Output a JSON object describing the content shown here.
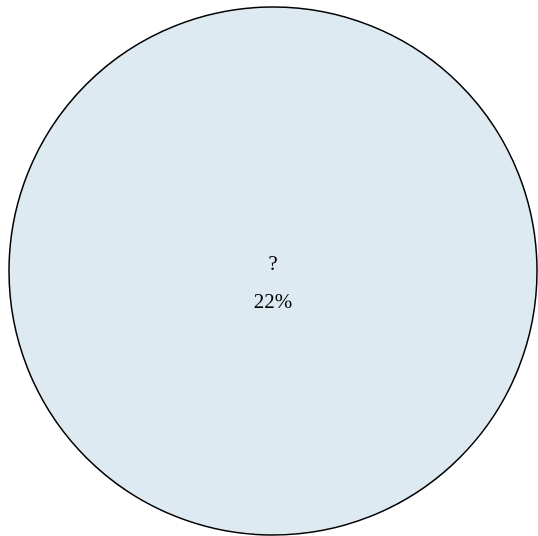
{
  "nodes": [
    {
      "label": "?",
      "value": "22%"
    }
  ]
}
